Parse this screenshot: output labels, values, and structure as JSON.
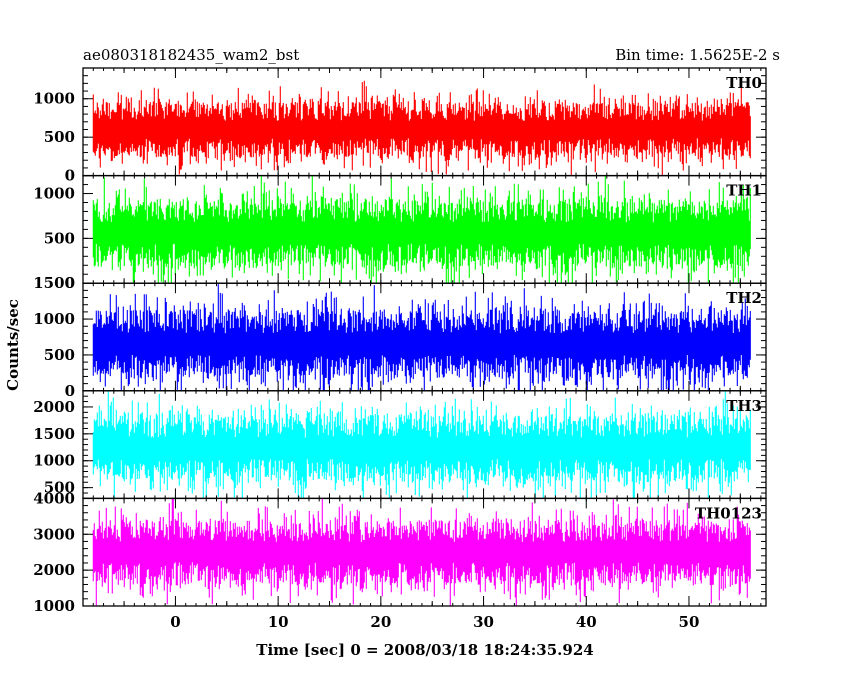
{
  "chart_data": {
    "type": "line",
    "title_left": "ae080318182435_wam2_bst",
    "title_right": "Bin time: 1.5625E-2 s",
    "xlabel": "Time [sec] 0 = 2008/03/18 18:24:35.924",
    "ylabel": "Counts/sec",
    "xlim": [
      -9,
      57.5
    ],
    "x_ticks": [
      0,
      10,
      20,
      30,
      40,
      50
    ],
    "x_data_range": [
      -8,
      56
    ],
    "grid": false,
    "panels": [
      {
        "name": "TH0",
        "color": "#ff0000",
        "ylim": [
          0,
          1400
        ],
        "y_ticks": [
          0,
          500,
          1000
        ],
        "typical_range": [
          0,
          1400
        ],
        "mean": 600,
        "spread": 190
      },
      {
        "name": "TH1",
        "color": "#00ff00",
        "ylim": [
          0,
          1200
        ],
        "y_ticks": [
          0,
          500,
          1000
        ],
        "typical_range": [
          0,
          1200
        ],
        "mean": 560,
        "spread": 200
      },
      {
        "name": "TH2",
        "color": "#0000ff",
        "ylim": [
          0,
          1500
        ],
        "y_ticks": [
          0,
          500,
          1000,
          1500
        ],
        "typical_range": [
          0,
          1500
        ],
        "mean": 650,
        "spread": 250
      },
      {
        "name": "TH3",
        "color": "#00ffff",
        "ylim": [
          300,
          2300
        ],
        "y_ticks": [
          500,
          1000,
          1500,
          2000
        ],
        "typical_range": [
          300,
          2300
        ],
        "mean": 1230,
        "spread": 330
      },
      {
        "name": "TH0123",
        "color": "#ff00ff",
        "ylim": [
          1000,
          4000
        ],
        "y_ticks": [
          1000,
          2000,
          3000,
          4000
        ],
        "typical_range": [
          1000,
          4000
        ],
        "mean": 2500,
        "spread": 470
      }
    ]
  }
}
